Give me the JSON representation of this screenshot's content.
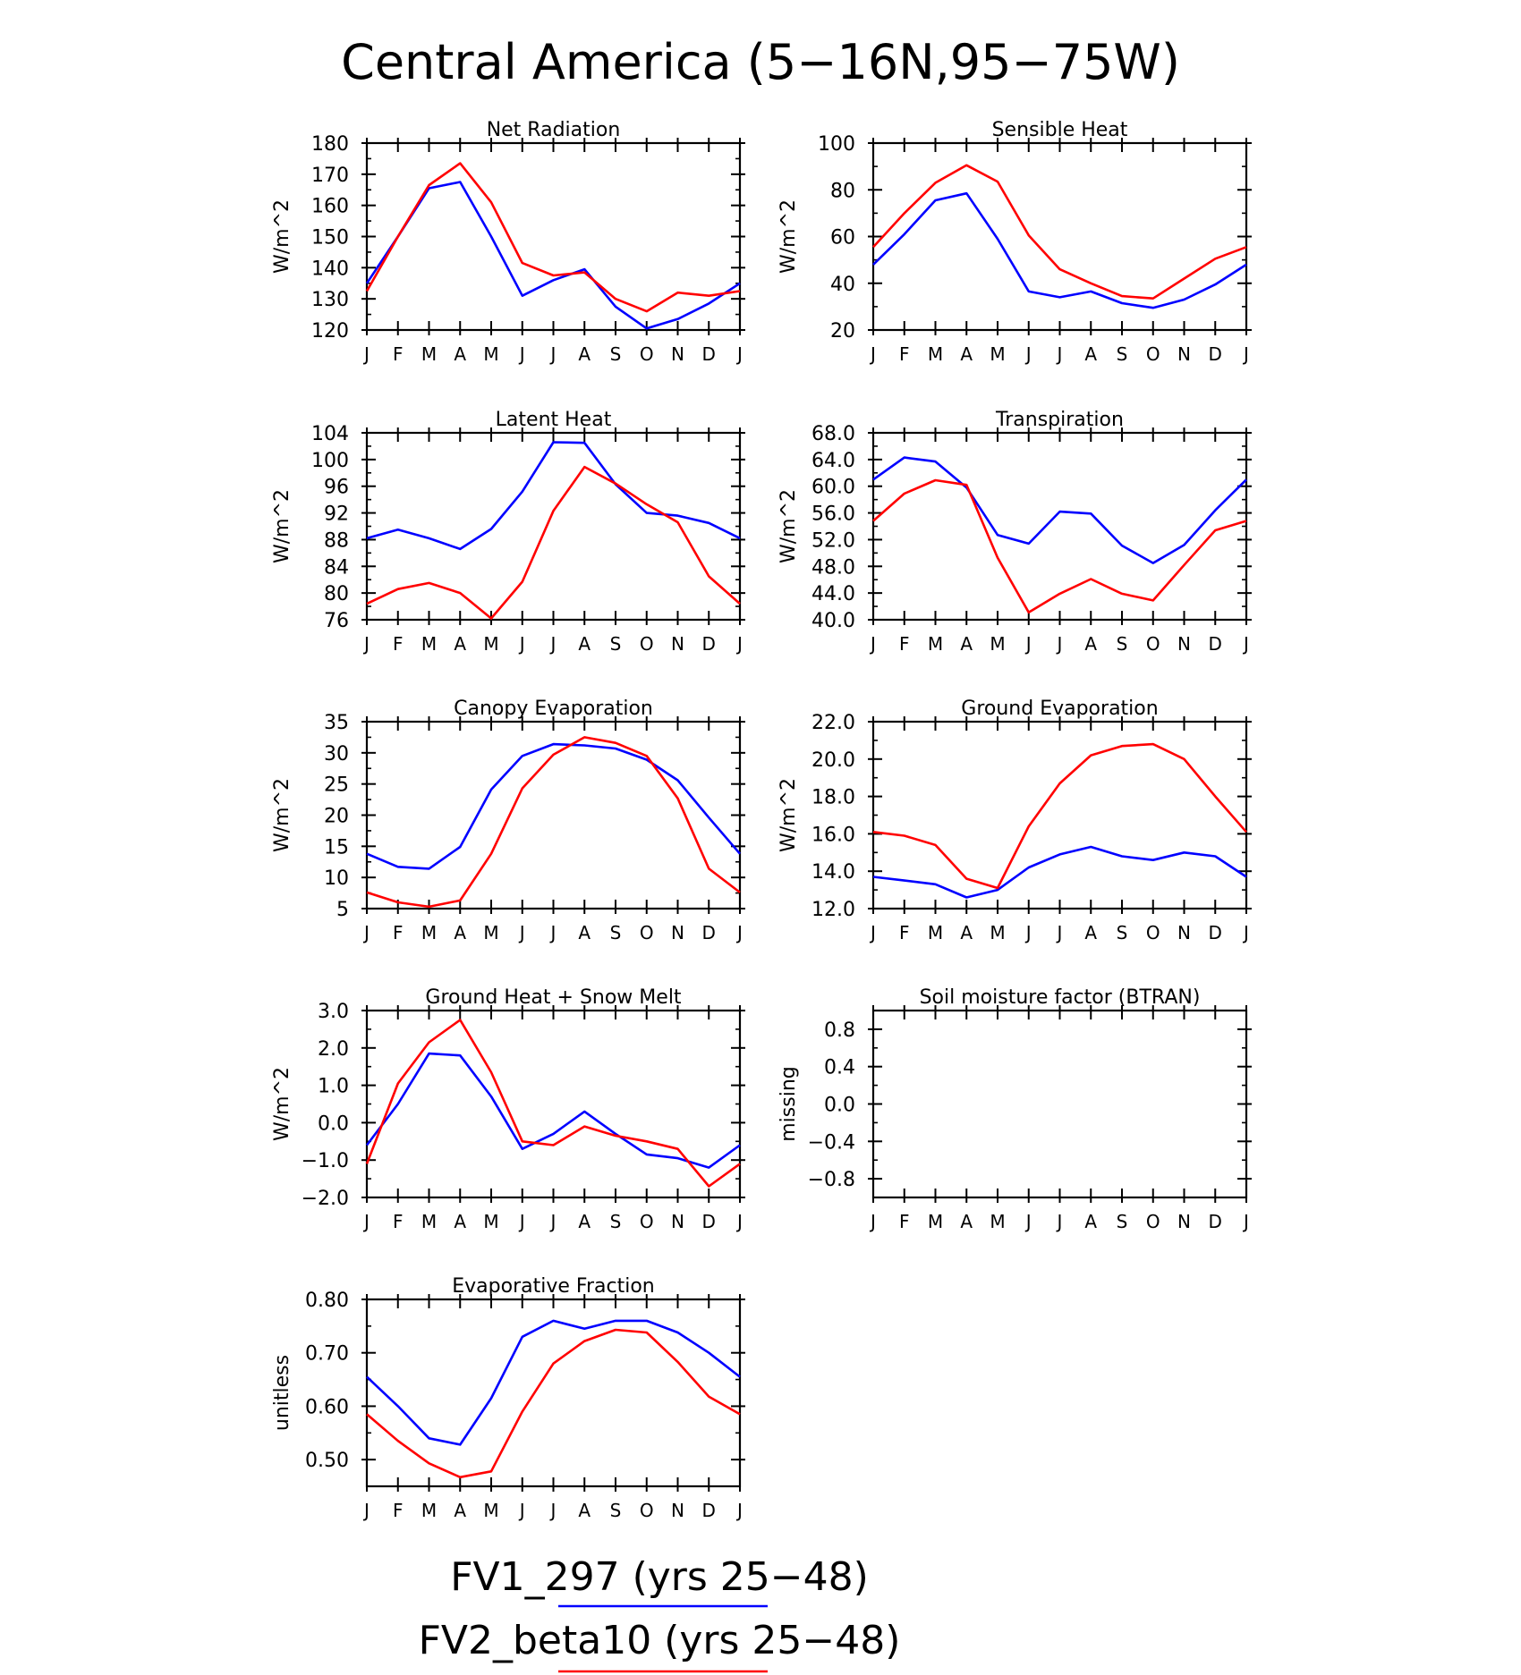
{
  "figure": {
    "title": "Central America (5−16N,95−75W)",
    "legend": [
      {
        "label": "FV1_297 (yrs 25−48)",
        "color": "#0000ff"
      },
      {
        "label": "FV2_beta10 (yrs 25−48)",
        "color": "#ff0000"
      }
    ]
  },
  "chart_data": [
    {
      "type": "line",
      "title": "Net Radiation",
      "ylabel": "W/m^2",
      "categories": [
        "J",
        "F",
        "M",
        "A",
        "M",
        "J",
        "J",
        "A",
        "S",
        "O",
        "N",
        "D",
        "J"
      ],
      "ylim": [
        120,
        180
      ],
      "yticks": [
        "120",
        "130",
        "140",
        "150",
        "160",
        "170",
        "180"
      ],
      "yticks_values": [
        120,
        130,
        140,
        150,
        160,
        170,
        180
      ],
      "series": [
        {
          "name": "FV1_297 (yrs 25−48)",
          "color": "#0000ff",
          "values": [
            135,
            150,
            165.5,
            167.5,
            150,
            131,
            136,
            139.5,
            127.5,
            120.5,
            123.5,
            128.5,
            135
          ]
        },
        {
          "name": "FV2_beta10 (yrs 25−48)",
          "color": "#ff0000",
          "values": [
            132.5,
            150,
            166.5,
            173.5,
            161,
            141.5,
            137.5,
            138.5,
            130,
            126,
            132,
            131,
            132.5
          ]
        }
      ]
    },
    {
      "type": "line",
      "title": "Sensible Heat",
      "ylabel": "W/m^2",
      "categories": [
        "J",
        "F",
        "M",
        "A",
        "M",
        "J",
        "J",
        "A",
        "S",
        "O",
        "N",
        "D",
        "J"
      ],
      "ylim": [
        20,
        100
      ],
      "yticks": [
        "20",
        "40",
        "60",
        "80",
        "100"
      ],
      "yticks_values": [
        20,
        40,
        60,
        80,
        100
      ],
      "series": [
        {
          "name": "FV1_297 (yrs 25−48)",
          "color": "#0000ff",
          "values": [
            48,
            61,
            75.5,
            78.5,
            59,
            36.5,
            34,
            36.5,
            31.5,
            29.5,
            33,
            39.5,
            48
          ]
        },
        {
          "name": "FV2_beta10 (yrs 25−48)",
          "color": "#ff0000",
          "values": [
            55.5,
            70,
            83,
            90.5,
            83.5,
            60.5,
            46,
            40,
            34.5,
            33.5,
            42,
            50.5,
            55.5
          ]
        }
      ]
    },
    {
      "type": "line",
      "title": "Latent Heat",
      "ylabel": "W/m^2",
      "categories": [
        "J",
        "F",
        "M",
        "A",
        "M",
        "J",
        "J",
        "A",
        "S",
        "O",
        "N",
        "D",
        "J"
      ],
      "ylim": [
        76,
        104
      ],
      "yticks": [
        "76",
        "80",
        "84",
        "88",
        "92",
        "96",
        "100",
        "104"
      ],
      "yticks_values": [
        76,
        80,
        84,
        88,
        92,
        96,
        100,
        104
      ],
      "series": [
        {
          "name": "FV1_297 (yrs 25−48)",
          "color": "#0000ff",
          "values": [
            88.2,
            89.5,
            88.2,
            86.6,
            89.6,
            95.2,
            102.6,
            102.5,
            96.3,
            92,
            91.6,
            90.5,
            88.2
          ]
        },
        {
          "name": "FV2_beta10 (yrs 25−48)",
          "color": "#ff0000",
          "values": [
            78.4,
            80.6,
            81.5,
            80,
            76.2,
            81.7,
            92.3,
            98.9,
            96.4,
            93.3,
            90.6,
            82.5,
            78.4
          ]
        }
      ]
    },
    {
      "type": "line",
      "title": "Transpiration",
      "ylabel": "W/m^2",
      "categories": [
        "J",
        "F",
        "M",
        "A",
        "M",
        "J",
        "J",
        "A",
        "S",
        "O",
        "N",
        "D",
        "J"
      ],
      "ylim": [
        40,
        68
      ],
      "yticks": [
        "40.0",
        "44.0",
        "48.0",
        "52.0",
        "56.0",
        "60.0",
        "64.0",
        "68.0"
      ],
      "yticks_values": [
        40,
        44,
        48,
        52,
        56,
        60,
        64,
        68
      ],
      "series": [
        {
          "name": "FV1_297 (yrs 25−48)",
          "color": "#0000ff",
          "values": [
            61,
            64.3,
            63.7,
            59.8,
            52.7,
            51.4,
            56.2,
            55.9,
            51.1,
            48.5,
            51.2,
            56.4,
            61
          ]
        },
        {
          "name": "FV2_beta10 (yrs 25−48)",
          "color": "#ff0000",
          "values": [
            54.8,
            58.9,
            60.9,
            60.2,
            49.3,
            41.1,
            43.9,
            46.1,
            43.9,
            42.9,
            48.2,
            53.4,
            54.8
          ]
        }
      ]
    },
    {
      "type": "line",
      "title": "Canopy Evaporation",
      "ylabel": "W/m^2",
      "categories": [
        "J",
        "F",
        "M",
        "A",
        "M",
        "J",
        "J",
        "A",
        "S",
        "O",
        "N",
        "D",
        "J"
      ],
      "ylim": [
        5,
        35
      ],
      "yticks": [
        "5",
        "10",
        "15",
        "20",
        "25",
        "30",
        "35"
      ],
      "yticks_values": [
        5,
        10,
        15,
        20,
        25,
        30,
        35
      ],
      "series": [
        {
          "name": "FV1_297 (yrs 25−48)",
          "color": "#0000ff",
          "values": [
            13.8,
            11.7,
            11.4,
            14.9,
            24.1,
            29.5,
            31.4,
            31.2,
            30.7,
            28.9,
            25.6,
            19.6,
            13.8
          ]
        },
        {
          "name": "FV2_beta10 (yrs 25−48)",
          "color": "#ff0000",
          "values": [
            7.6,
            6,
            5.3,
            6.3,
            13.8,
            24.3,
            29.7,
            32.5,
            31.6,
            29.5,
            22.7,
            11.4,
            7.6
          ]
        }
      ]
    },
    {
      "type": "line",
      "title": "Ground Evaporation",
      "ylabel": "W/m^2",
      "categories": [
        "J",
        "F",
        "M",
        "A",
        "M",
        "J",
        "J",
        "A",
        "S",
        "O",
        "N",
        "D",
        "J"
      ],
      "ylim": [
        12,
        22
      ],
      "yticks": [
        "12.0",
        "14.0",
        "16.0",
        "18.0",
        "20.0",
        "22.0"
      ],
      "yticks_values": [
        12,
        14,
        16,
        18,
        20,
        22
      ],
      "series": [
        {
          "name": "FV1_297 (yrs 25−48)",
          "color": "#0000ff",
          "values": [
            13.7,
            13.5,
            13.3,
            12.6,
            13,
            14.2,
            14.9,
            15.3,
            14.8,
            14.6,
            15,
            14.8,
            13.7
          ]
        },
        {
          "name": "FV2_beta10 (yrs 25−48)",
          "color": "#ff0000",
          "values": [
            16.1,
            15.9,
            15.4,
            13.6,
            13.1,
            16.4,
            18.7,
            20.2,
            20.7,
            20.8,
            20,
            18,
            16.1
          ]
        }
      ]
    },
    {
      "type": "line",
      "title": "Ground Heat + Snow Melt",
      "ylabel": "W/m^2",
      "categories": [
        "J",
        "F",
        "M",
        "A",
        "M",
        "J",
        "J",
        "A",
        "S",
        "O",
        "N",
        "D",
        "J"
      ],
      "ylim": [
        -2,
        3
      ],
      "yticks": [
        "−2.0",
        "−1.0",
        "0.0",
        "1.0",
        "2.0",
        "3.0"
      ],
      "yticks_values": [
        -2,
        -1,
        0,
        1,
        2,
        3
      ],
      "series": [
        {
          "name": "FV1_297 (yrs 25−48)",
          "color": "#0000ff",
          "values": [
            -0.6,
            0.5,
            1.85,
            1.8,
            0.7,
            -0.7,
            -0.3,
            0.3,
            -0.3,
            -0.85,
            -0.95,
            -1.2,
            -0.6
          ]
        },
        {
          "name": "FV2_beta10 (yrs 25−48)",
          "color": "#ff0000",
          "values": [
            -1.1,
            1.05,
            2.15,
            2.75,
            1.35,
            -0.5,
            -0.6,
            -0.1,
            -0.35,
            -0.5,
            -0.7,
            -1.7,
            -1.1
          ]
        }
      ]
    },
    {
      "type": "line",
      "title": "Soil moisture factor (BTRAN)",
      "ylabel": "missing",
      "categories": [
        "J",
        "F",
        "M",
        "A",
        "M",
        "J",
        "J",
        "A",
        "S",
        "O",
        "N",
        "D",
        "J"
      ],
      "ylim": [
        -1,
        1
      ],
      "yticks": [
        "−0.8",
        "−0.4",
        "0.0",
        "0.4",
        "0.8"
      ],
      "yticks_values": [
        -0.8,
        -0.4,
        0,
        0.4,
        0.8
      ],
      "series": []
    },
    {
      "type": "line",
      "title": "Evaporative Fraction",
      "ylabel": "unitless",
      "categories": [
        "J",
        "F",
        "M",
        "A",
        "M",
        "J",
        "J",
        "A",
        "S",
        "O",
        "N",
        "D",
        "J"
      ],
      "ylim": [
        0.45,
        0.8
      ],
      "yticks": [
        "0.50",
        "0.60",
        "0.70",
        "0.80"
      ],
      "yticks_values": [
        0.5,
        0.6,
        0.7,
        0.8
      ],
      "series": [
        {
          "name": "FV1_297 (yrs 25−48)",
          "color": "#0000ff",
          "values": [
            0.655,
            0.6,
            0.54,
            0.528,
            0.615,
            0.73,
            0.76,
            0.745,
            0.76,
            0.76,
            0.738,
            0.7,
            0.655
          ]
        },
        {
          "name": "FV2_beta10 (yrs 25−48)",
          "color": "#ff0000",
          "values": [
            0.585,
            0.535,
            0.493,
            0.467,
            0.478,
            0.59,
            0.68,
            0.722,
            0.743,
            0.738,
            0.683,
            0.618,
            0.585
          ]
        }
      ]
    }
  ]
}
